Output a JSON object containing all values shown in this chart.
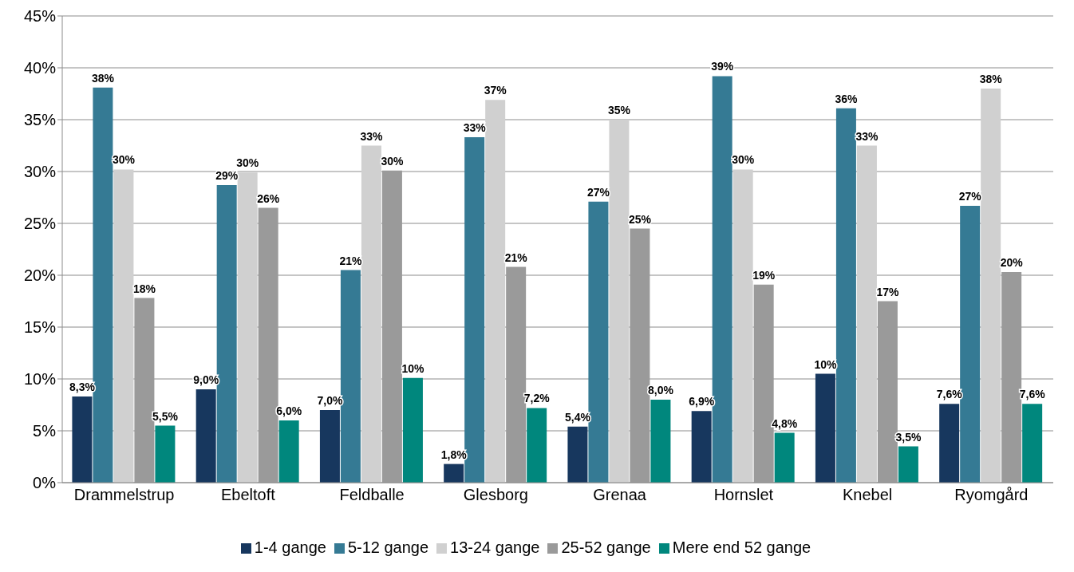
{
  "chart_data": {
    "type": "bar",
    "categories": [
      "Drammelstrup",
      "Ebeltoft",
      "Feldballe",
      "Glesborg",
      "Grenaa",
      "Hornslet",
      "Knebel",
      "Ryomgård"
    ],
    "series": [
      {
        "name": "1-4 gange",
        "color": "#17375e",
        "values": [
          8.3,
          9.0,
          7.0,
          1.8,
          5.4,
          6.9,
          10.5,
          7.6
        ],
        "value_labels": [
          "8,3%",
          "9,0%",
          "7,0%",
          "1,8%",
          "5,4%",
          "6,9%",
          "10%",
          "7,6%"
        ]
      },
      {
        "name": "5-12 gange",
        "color": "#357a94",
        "values": [
          38.1,
          28.7,
          20.5,
          33.3,
          27.1,
          39.2,
          36.1,
          26.7
        ],
        "value_labels": [
          "38%",
          "29%",
          "21%",
          "33%",
          "27%",
          "39%",
          "36%",
          "27%"
        ]
      },
      {
        "name": "13-24 gange",
        "color": "#d0d0d0",
        "values": [
          30.2,
          29.9,
          32.5,
          36.9,
          35.0,
          30.2,
          32.5,
          38.0
        ],
        "value_labels": [
          "30%",
          "30%",
          "33%",
          "37%",
          "35%",
          "30%",
          "33%",
          "38%"
        ]
      },
      {
        "name": "25-52 gange",
        "color": "#9a9a9a",
        "values": [
          17.8,
          26.5,
          30.1,
          20.8,
          24.5,
          19.1,
          17.5,
          20.3
        ],
        "value_labels": [
          "18%",
          "26%",
          "30%",
          "21%",
          "25%",
          "19%",
          "17%",
          "20%"
        ]
      },
      {
        "name": "Mere end 52 gange",
        "color": "#00877d",
        "values": [
          5.5,
          6.0,
          10.1,
          7.2,
          8.0,
          4.8,
          3.5,
          7.6
        ],
        "value_labels": [
          "5,5%",
          "6,0%",
          "10%",
          "7,2%",
          "8,0%",
          "4,8%",
          "3,5%",
          "7,6%"
        ]
      }
    ],
    "ylim": [
      0,
      45
    ],
    "yticks": [
      {
        "value": 0,
        "label": "0%"
      },
      {
        "value": 5,
        "label": "5%"
      },
      {
        "value": 10,
        "label": "10%"
      },
      {
        "value": 15,
        "label": "15%"
      },
      {
        "value": 20,
        "label": "20%"
      },
      {
        "value": 25,
        "label": "25%"
      },
      {
        "value": 30,
        "label": "30%"
      },
      {
        "value": 35,
        "label": "35%"
      },
      {
        "value": 40,
        "label": "40%"
      },
      {
        "value": 45,
        "label": "45%"
      }
    ],
    "grid": "y",
    "legend": "bottom"
  }
}
